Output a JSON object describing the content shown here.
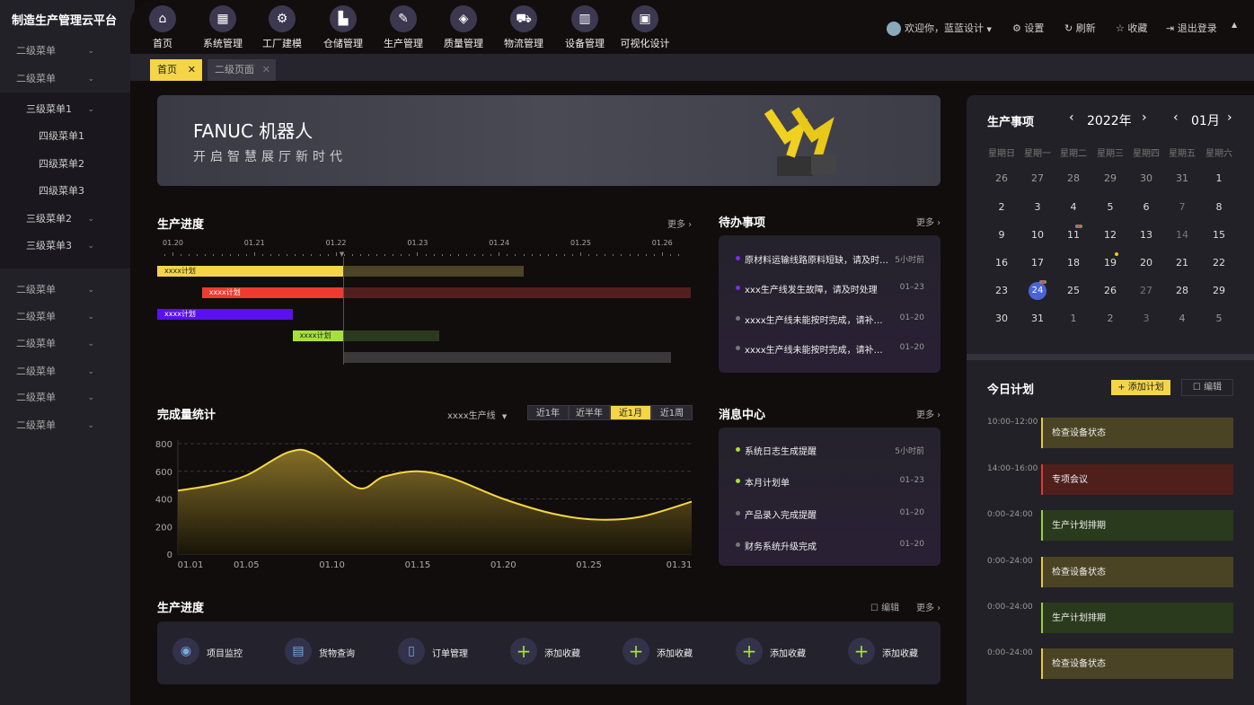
{
  "app_title": "制造生产管理云平台",
  "sidebar": {
    "items": [
      {
        "label": "二级菜单"
      },
      {
        "label": "二级菜单"
      },
      {
        "label": "三级菜单1",
        "level": 3
      },
      {
        "label": "四级菜单1",
        "level": 4
      },
      {
        "label": "四级菜单2",
        "level": 4
      },
      {
        "label": "四级菜单3",
        "level": 4
      },
      {
        "label": "三级菜单2",
        "level": 3
      },
      {
        "label": "三级菜单3",
        "level": 3
      },
      {
        "label": "二级菜单"
      },
      {
        "label": "二级菜单"
      },
      {
        "label": "二级菜单"
      },
      {
        "label": "二级菜单"
      },
      {
        "label": "二级菜单"
      },
      {
        "label": "二级菜单"
      }
    ]
  },
  "nav": [
    {
      "label": "首页",
      "icon": "home-icon",
      "g": "⌂"
    },
    {
      "label": "系统管理",
      "icon": "grid-icon",
      "g": "▦"
    },
    {
      "label": "工厂建模",
      "icon": "robot-arm-icon",
      "g": "⚙"
    },
    {
      "label": "仓储管理",
      "icon": "warehouse-icon",
      "g": "▙"
    },
    {
      "label": "生产管理",
      "icon": "production-icon",
      "g": "✎"
    },
    {
      "label": "质量管理",
      "icon": "diamond-icon",
      "g": "◈"
    },
    {
      "label": "物流管理",
      "icon": "truck-icon",
      "g": "⛟"
    },
    {
      "label": "设备管理",
      "icon": "cabinet-icon",
      "g": "▥"
    },
    {
      "label": "可视化设计",
      "icon": "monitor-chart-icon",
      "g": "▣"
    }
  ],
  "header": {
    "welcome": "欢迎你，蓝蓝设计",
    "settings": "设置",
    "refresh": "刷新",
    "favorite": "收藏",
    "logout": "退出登录"
  },
  "tabs": [
    {
      "label": "首页",
      "active": true
    },
    {
      "label": "二级页面",
      "active": false
    }
  ],
  "banner": {
    "title": "FANUC  机器人",
    "subtitle": "开启智慧展厅新时代"
  },
  "gantt": {
    "title": "生产进度",
    "more": "更多 ›",
    "now": 22.08,
    "ticks": [
      "01.20",
      "01.21",
      "01.22",
      "01.23",
      "01.24",
      "01.25",
      "01.26"
    ],
    "bars": [
      {
        "label": "xxxx计划",
        "start": 19.8,
        "end": 24.3,
        "color": "#f5d547",
        "fade": "#4b4427",
        "text": "#222"
      },
      {
        "label": "xxxx计划",
        "start": 20.35,
        "end": 26.34,
        "color": "#f03a2e",
        "fade": "#521f1e",
        "text": "#fff"
      },
      {
        "label": "xxxx计划",
        "start": 19.8,
        "end": 21.46,
        "color": "#5a10f0",
        "fade": "#5a10f0",
        "text": "#fff"
      },
      {
        "label": "xxxx计划",
        "start": 21.46,
        "end": 23.26,
        "color": "#a6e03c",
        "fade": "#2b3a1e",
        "text": "#222"
      },
      {
        "label": "",
        "start": 22.08,
        "end": 26.1,
        "color": "#3a3838",
        "fade": "#3a3838",
        "text": "#fff"
      }
    ]
  },
  "todo": {
    "title": "待办事项",
    "more": "更多 ›",
    "items": [
      {
        "text": "原材料运输线路原料短缺，请及时处理",
        "time": "5小时前",
        "color": "#7a2cf0"
      },
      {
        "text": "xxx生产线发生故障，请及时处理",
        "time": "01–23",
        "color": "#7a2cf0"
      },
      {
        "text": "xxxx生产线未能按时完成，请补充说明",
        "time": "01–20",
        "color": "#777"
      },
      {
        "text": "xxxx生产线未能按时完成，请补充说明",
        "time": "01–20",
        "color": "#777"
      }
    ]
  },
  "stats": {
    "title": "完成量统计",
    "line_select": "xxxx生产线",
    "ranges": [
      "近1年",
      "近半年",
      "近1月",
      "近1周"
    ],
    "active_range": "近1月"
  },
  "chart_data": {
    "type": "area",
    "xlabel": "",
    "ylabel": "",
    "ylim": [
      0,
      800
    ],
    "yticks": [
      0,
      200,
      400,
      600,
      800
    ],
    "xticks": [
      "01.01",
      "01.05",
      "01.10",
      "01.15",
      "01.20",
      "01.25",
      "01.31"
    ],
    "x": [
      1,
      3,
      5,
      7.5,
      9,
      11.5,
      13,
      15,
      17,
      20,
      23,
      25.5,
      28,
      31
    ],
    "values": [
      460,
      500,
      570,
      740,
      720,
      480,
      560,
      600,
      550,
      400,
      290,
      250,
      270,
      380
    ],
    "grid": "dashed-horizontal",
    "color": "#f5d547"
  },
  "messages": {
    "title": "消息中心",
    "more": "更多 ›",
    "items": [
      {
        "text": "系统日志生成提醒",
        "time": "5小时前",
        "color": "#a6e03c"
      },
      {
        "text": "本月计划单",
        "time": "01–23",
        "color": "#a6e03c"
      },
      {
        "text": "产品录入完成提醒",
        "time": "01–20",
        "color": "#777"
      },
      {
        "text": "财务系统升级完成",
        "time": "01–20",
        "color": "#777"
      }
    ]
  },
  "quick": {
    "title": "生产进度",
    "edit": "编辑",
    "more": "更多 ›",
    "items": [
      {
        "label": "项目监控",
        "icon": "location-monitor-icon",
        "g": "◉"
      },
      {
        "label": "货物查询",
        "icon": "cargo-search-icon",
        "g": "▤"
      },
      {
        "label": "订单管理",
        "icon": "clipboard-icon",
        "g": "▯"
      },
      {
        "label": "添加收藏",
        "icon": "plus-icon",
        "g": "+"
      },
      {
        "label": "添加收藏",
        "icon": "plus-icon",
        "g": "+"
      },
      {
        "label": "添加收藏",
        "icon": "plus-icon",
        "g": "+"
      },
      {
        "label": "添加收藏",
        "icon": "plus-icon",
        "g": "+"
      }
    ]
  },
  "calendar": {
    "title": "生产事项",
    "year": "2022年",
    "month": "01月",
    "weekdays": [
      "星期日",
      "星期一",
      "星期二",
      "星期三",
      "星期四",
      "星期五",
      "星期六"
    ],
    "days": [
      "26",
      "27",
      "28",
      "29",
      "30",
      "31",
      "1",
      "2",
      "3",
      "4",
      "5",
      "6",
      "7",
      "8",
      "9",
      "10",
      "11",
      "12",
      "13",
      "14",
      "15",
      "16",
      "17",
      "18",
      "19",
      "20",
      "21",
      "22",
      "23",
      "24",
      "25",
      "26",
      "27",
      "28",
      "29",
      "30",
      "31",
      "1",
      "2",
      "3",
      "4",
      "5"
    ],
    "selected": "24",
    "muted_idx": [
      12,
      19,
      32,
      39
    ],
    "other_month_idx": [
      0,
      1,
      2,
      3,
      4,
      5,
      37,
      38,
      39,
      40,
      41
    ],
    "event_idx": [
      16,
      24,
      29
    ]
  },
  "plan": {
    "title": "今日计划",
    "add": "添加计划",
    "edit": "编辑",
    "items": [
      {
        "time": "10:00–12:00",
        "text": "检查设备状态",
        "bg": "#4a4424",
        "bar": "#e8c840"
      },
      {
        "time": "14:00–16:00",
        "text": "专项会议",
        "bg": "#4f1f1c",
        "bar": "#e03a2e"
      },
      {
        "time": "0:00–24:00",
        "text": "生产计划排期",
        "bg": "#2a3a1c",
        "bar": "#9ad03c"
      },
      {
        "time": "0:00–24:00",
        "text": "检查设备状态",
        "bg": "#4a4424",
        "bar": "#e8c840"
      },
      {
        "time": "0:00–24:00",
        "text": "生产计划排期",
        "bg": "#2a3a1c",
        "bar": "#9ad03c"
      },
      {
        "time": "0:00–24:00",
        "text": "检查设备状态",
        "bg": "#4a4424",
        "bar": "#e8c840"
      }
    ]
  }
}
